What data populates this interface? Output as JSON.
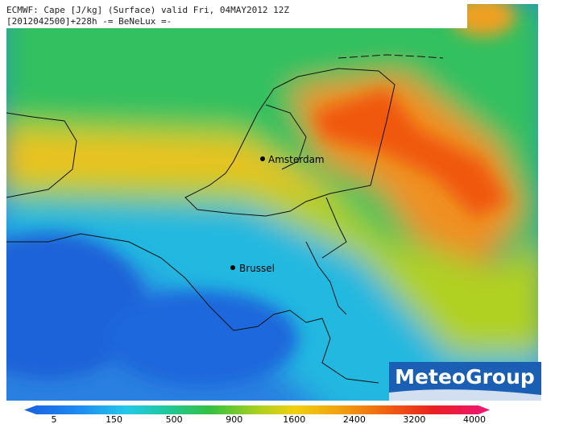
{
  "header": {
    "line1": "ECMWF: Cape [J/kg] (Surface) valid Fri, 04MAY2012 12Z",
    "line2": "[2012042500]+228h -= BeNeLux =-"
  },
  "cities": [
    {
      "label": "Amsterdam"
    },
    {
      "label": "Brussel"
    }
  ],
  "logo": "MeteoGroup",
  "colorbar": {
    "ticks": [
      5,
      150,
      500,
      900,
      1600,
      2400,
      3200,
      4000
    ]
  }
}
